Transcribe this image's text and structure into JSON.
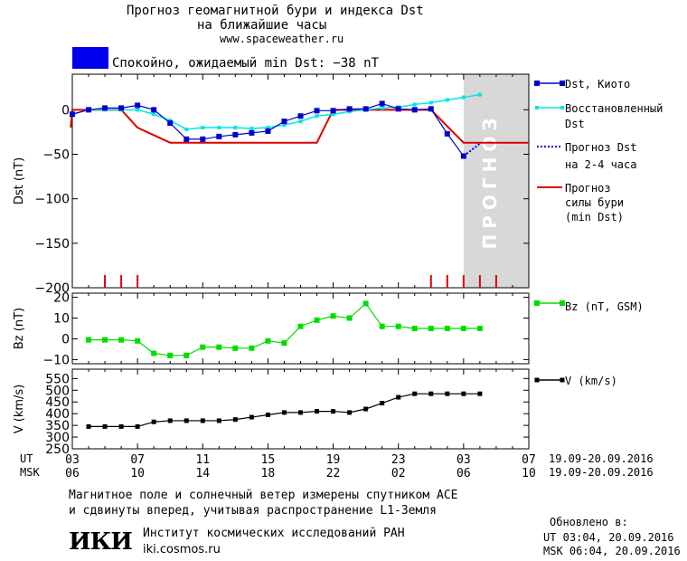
{
  "header": {
    "title_line1": "Прогноз геомагнитной бури и индекса Dst",
    "title_line2": "на ближайшие часы",
    "site": "www.spaceweather.ru",
    "status_text": "Спокойно, ожидаемый min Dst: −38 nT",
    "status_color": "#0000ee"
  },
  "colors": {
    "dst": "#0000cc",
    "reconstructed": "#00e5e5",
    "storm": "#dd0000",
    "bz": "#00dd00",
    "v": "#000000",
    "forecast_bg": "#d8d8d8",
    "forecast_text": "#ffffff"
  },
  "legend": {
    "dst": "Dst, Киото",
    "reconstructed_1": "Восстановленный",
    "reconstructed_2": "Dst",
    "forecast_1": "Прогноз Dst",
    "forecast_2": "на 2-4 часа",
    "storm_1": "Прогноз",
    "storm_2": "силы бури",
    "storm_3": "(min Dst)",
    "bz": "Bz (nT, GSM)",
    "v": "V (km/s)"
  },
  "forecast_label": "ПРОГНОЗ",
  "time_axis": {
    "ut_label": "UT",
    "msk_label": "MSK",
    "ut_ticks": [
      "03",
      "07",
      "11",
      "15",
      "19",
      "23",
      "03",
      "07"
    ],
    "msk_ticks": [
      "06",
      "10",
      "14",
      "18",
      "22",
      "02",
      "06",
      "10"
    ],
    "ut_range": "19.09-20.09.2016",
    "msk_range": "19.09-20.09.2016"
  },
  "chart_data": [
    {
      "type": "line",
      "ylabel": "Dst (nT)",
      "ylim": [
        -200,
        40
      ],
      "yticks": [
        0,
        -50,
        -100,
        -150,
        -200
      ],
      "x_hours_ut_start": 3,
      "dst_kyoto": {
        "name": "Dst, Киото",
        "x": [
          3,
          4,
          5,
          6,
          7,
          8,
          9,
          10,
          11,
          12,
          13,
          14,
          15,
          16,
          17,
          18,
          19,
          20,
          21,
          22,
          23,
          24,
          25,
          26,
          27
        ],
        "values": [
          -5,
          0,
          2,
          2,
          5,
          0,
          -15,
          -33,
          -33,
          -30,
          -28,
          -26,
          -24,
          -13,
          -7,
          -1,
          -1,
          1,
          1,
          7,
          1,
          0,
          1,
          -27,
          -52
        ]
      },
      "reconstructed": {
        "name": "Восстановленный Dst",
        "x": [
          3,
          4,
          5,
          6,
          7,
          8,
          9,
          10,
          11,
          12,
          13,
          14,
          15,
          16,
          17,
          18,
          19,
          20,
          21,
          22,
          23,
          24,
          25,
          26,
          27,
          28
        ],
        "values": [
          -5,
          0,
          0,
          0,
          0,
          -5,
          -12,
          -22,
          -20,
          -20,
          -20,
          -21,
          -20,
          -17,
          -13,
          -7,
          -5,
          -2,
          0,
          2,
          3,
          6,
          8,
          11,
          14,
          17
        ]
      },
      "forecast_dst": {
        "name": "Прогноз Dst на 2-4 часа",
        "x": [
          27,
          28
        ],
        "values": [
          -52,
          -38
        ]
      },
      "storm_forecast": {
        "name": "Прогноз силы бури (min Dst)",
        "x": [
          2.9,
          3,
          6,
          7,
          9,
          18,
          19,
          24,
          25,
          27,
          28,
          31
        ],
        "values": [
          -20,
          0,
          0,
          -20,
          -37,
          -37,
          0,
          0,
          0,
          -37,
          -37,
          -37
        ]
      },
      "storm_markers_x": [
        5,
        6,
        7,
        25,
        26,
        27,
        28,
        29
      ],
      "forecast_region_x": [
        27,
        31
      ]
    },
    {
      "type": "line",
      "ylabel": "Bz (nT)",
      "ylim": [
        -12,
        22
      ],
      "yticks": [
        20,
        10,
        0,
        -10
      ],
      "series": [
        {
          "name": "Bz (nT, GSM)",
          "x": [
            4,
            5,
            6,
            7,
            8,
            9,
            10,
            11,
            12,
            13,
            14,
            15,
            16,
            17,
            18,
            19,
            20,
            21,
            22,
            23,
            24,
            25,
            26,
            27,
            28
          ],
          "values": [
            -0.5,
            -0.5,
            -0.5,
            -1,
            -7,
            -8,
            -8,
            -4,
            -4,
            -4.5,
            -4.5,
            -1,
            -2,
            6,
            9,
            11,
            10,
            17,
            6,
            6,
            5,
            5,
            5,
            5,
            5
          ]
        }
      ]
    },
    {
      "type": "line",
      "ylabel": "V (km/s)",
      "ylim": [
        250,
        590
      ],
      "yticks": [
        550,
        500,
        450,
        400,
        350,
        300,
        250
      ],
      "series": [
        {
          "name": "V (km/s)",
          "x": [
            4,
            5,
            6,
            7,
            8,
            9,
            10,
            11,
            12,
            13,
            14,
            15,
            16,
            17,
            18,
            19,
            20,
            21,
            22,
            23,
            24,
            25,
            26,
            27,
            28
          ],
          "values": [
            345,
            345,
            345,
            345,
            365,
            370,
            370,
            370,
            370,
            375,
            385,
            395,
            405,
            405,
            410,
            410,
            405,
            420,
            445,
            470,
            485,
            485,
            485,
            485,
            485
          ]
        }
      ]
    }
  ],
  "footer": {
    "line1": "Магнитное поле и солнечный ветер измерены спутником ACE",
    "line2": "и сдвинуты вперед, учитывая распространение L1-Земля",
    "institute_logo": "ИКИ",
    "institute_name": "Институт космических исследований РАН",
    "institute_site": "iki.cosmos.ru",
    "updated_label": "Обновлено в:",
    "updated_ut": "UT  03:04, 20.09.2016",
    "updated_msk": "MSK 06:04, 20.09.2016"
  }
}
